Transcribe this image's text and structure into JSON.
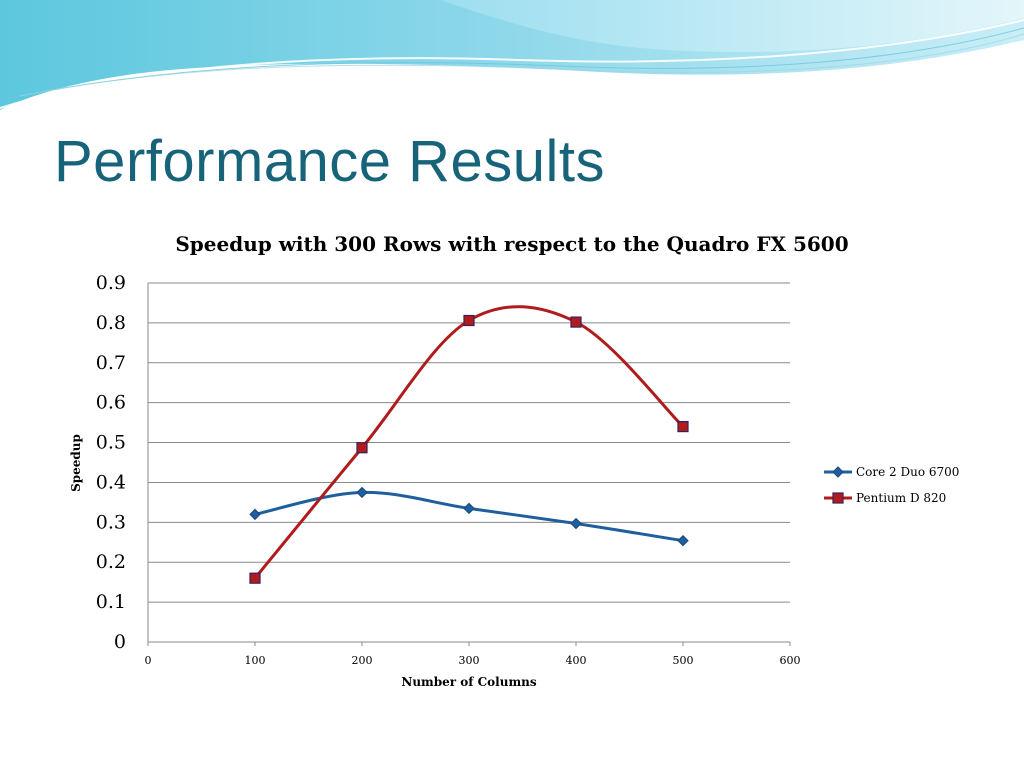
{
  "slide": {
    "title": "Performance Results"
  },
  "chart_data": {
    "type": "line",
    "title": "Speedup with 300 Rows with respect to the Quadro FX 5600",
    "xlabel": "Number of Columns",
    "ylabel": "Speedup",
    "xlim": [
      0,
      600
    ],
    "ylim": [
      0,
      0.9
    ],
    "xticks": [
      "0",
      "100",
      "200",
      "300",
      "400",
      "500",
      "600"
    ],
    "yticks": [
      "0",
      "0.1",
      "0.2",
      "0.3",
      "0.4",
      "0.5",
      "0.6",
      "0.7",
      "0.8",
      "0.9"
    ],
    "grid": true,
    "legend_position": "right",
    "smoothed": true,
    "x": [
      100,
      200,
      300,
      400,
      500
    ],
    "series": [
      {
        "name": "Core 2 Duo 6700",
        "values": [
          0.32,
          0.375,
          0.335,
          0.297,
          0.254
        ],
        "color": "#1f5f9e",
        "marker": "diamond"
      },
      {
        "name": "Pentium D 820",
        "values": [
          0.16,
          0.487,
          0.806,
          0.802,
          0.54
        ],
        "color": "#b01c1c",
        "marker": "square"
      }
    ]
  }
}
